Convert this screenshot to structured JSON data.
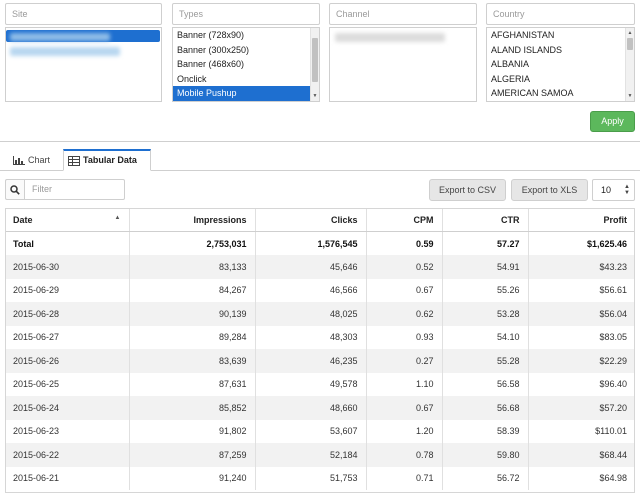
{
  "filters": {
    "site": {
      "placeholder": "Site"
    },
    "types": {
      "placeholder": "Types",
      "options": [
        "Banner (728x90)",
        "Banner (300x250)",
        "Banner (468x60)",
        "Onclick",
        "Mobile Pushup"
      ],
      "selected_index": 4
    },
    "channel": {
      "placeholder": "Channel"
    },
    "country": {
      "placeholder": "Country",
      "options": [
        "AFGHANISTAN",
        "ALAND ISLANDS",
        "ALBANIA",
        "ALGERIA",
        "AMERICAN SAMOA"
      ]
    }
  },
  "apply_label": "Apply",
  "tabs": [
    {
      "label": "Chart",
      "icon": "bar-chart-icon",
      "active": false
    },
    {
      "label": "Tabular Data",
      "icon": "table-icon",
      "active": true
    }
  ],
  "toolbar": {
    "filter_placeholder": "Filter",
    "export_csv": "Export to CSV",
    "export_xls": "Export to XLS",
    "page_size": "10"
  },
  "table": {
    "columns": [
      "Date",
      "Impressions",
      "Clicks",
      "CPM",
      "CTR",
      "Profit"
    ],
    "total": [
      "Total",
      "2,753,031",
      "1,576,545",
      "0.59",
      "57.27",
      "$1,625.46"
    ],
    "rows": [
      [
        "2015-06-30",
        "83,133",
        "45,646",
        "0.52",
        "54.91",
        "$43.23"
      ],
      [
        "2015-06-29",
        "84,267",
        "46,566",
        "0.67",
        "55.26",
        "$56.61"
      ],
      [
        "2015-06-28",
        "90,139",
        "48,025",
        "0.62",
        "53.28",
        "$56.04"
      ],
      [
        "2015-06-27",
        "89,284",
        "48,303",
        "0.93",
        "54.10",
        "$83.05"
      ],
      [
        "2015-06-26",
        "83,639",
        "46,235",
        "0.27",
        "55.28",
        "$22.29"
      ],
      [
        "2015-06-25",
        "87,631",
        "49,578",
        "1.10",
        "56.58",
        "$96.40"
      ],
      [
        "2015-06-24",
        "85,852",
        "48,660",
        "0.67",
        "56.68",
        "$57.20"
      ],
      [
        "2015-06-23",
        "91,802",
        "53,607",
        "1.20",
        "58.39",
        "$110.01"
      ],
      [
        "2015-06-22",
        "87,259",
        "52,184",
        "0.78",
        "59.80",
        "$68.44"
      ],
      [
        "2015-06-21",
        "91,240",
        "51,753",
        "0.71",
        "56.72",
        "$64.98"
      ]
    ]
  },
  "colors": {
    "accent": "#1e6fd0",
    "apply": "#5cb85c",
    "stripe": "#f2f2f2"
  }
}
